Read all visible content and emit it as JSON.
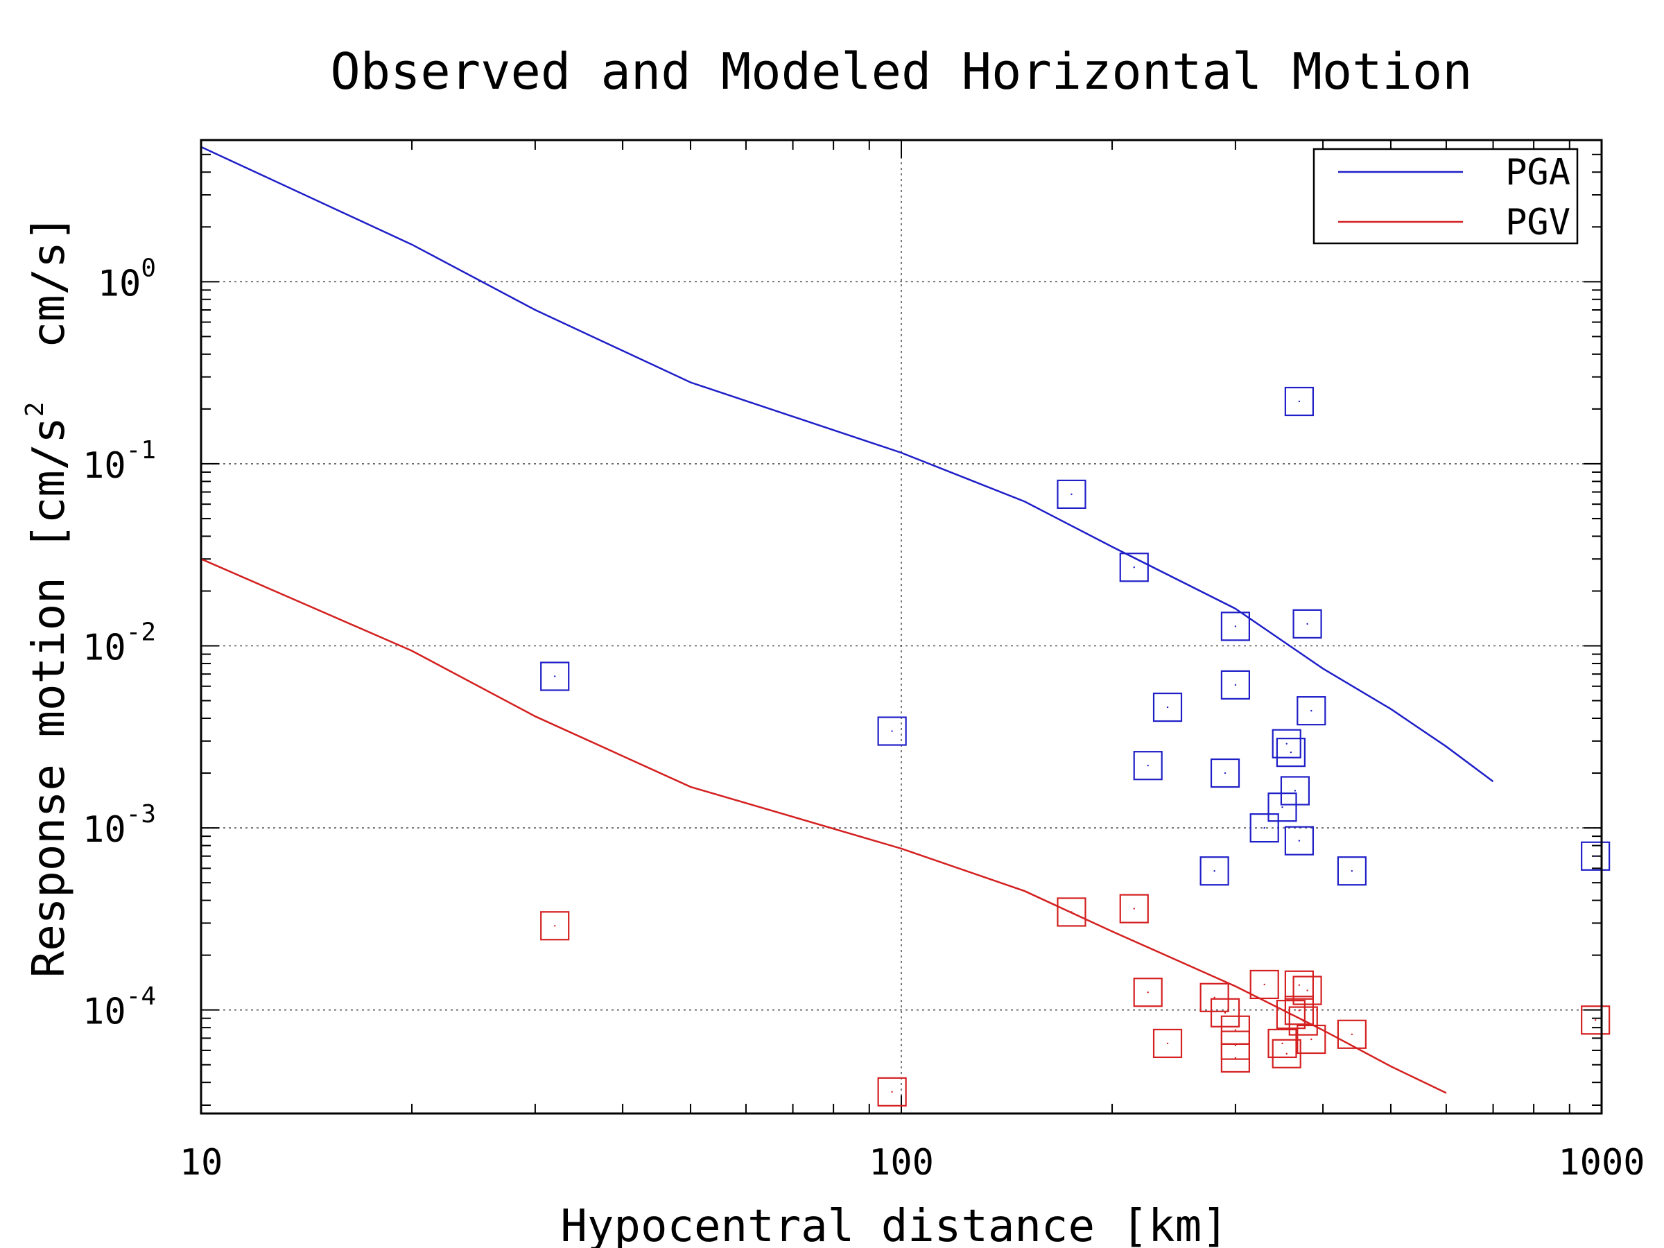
{
  "chart_data": {
    "type": "scatter",
    "title": "Observed and Modeled Horizontal Motion",
    "xlabel": "Hypocentral distance [km]",
    "ylabel_prefix": "Response motion [cm/s",
    "ylabel_sup": "2",
    "ylabel_suffix": "  cm/s]",
    "x_scale": "log",
    "y_scale": "log",
    "xlim": [
      10,
      1000
    ],
    "ylim": [
      2.7e-05,
      6
    ],
    "grid": "dotted at major ticks",
    "legend_position": "top-right",
    "x_ticks": [
      {
        "value": 10,
        "label": "10"
      },
      {
        "value": 100,
        "label": "100"
      },
      {
        "value": 1000,
        "label": "1000"
      }
    ],
    "y_ticks": [
      {
        "value": 1,
        "base": "10",
        "exp": "0"
      },
      {
        "value": 0.1,
        "base": "10",
        "exp": "-1"
      },
      {
        "value": 0.01,
        "base": "10",
        "exp": "-2"
      },
      {
        "value": 0.001,
        "base": "10",
        "exp": "-3"
      },
      {
        "value": 0.0001,
        "base": "10",
        "exp": "-4"
      }
    ],
    "series": [
      {
        "name": "PGA",
        "color": "#1f1fc8",
        "model_line": [
          [
            10,
            5.5
          ],
          [
            20,
            1.6
          ],
          [
            30,
            0.7
          ],
          [
            50,
            0.28
          ],
          [
            100,
            0.115
          ],
          [
            150,
            0.062
          ],
          [
            200,
            0.035
          ],
          [
            300,
            0.016
          ],
          [
            400,
            0.0075
          ],
          [
            500,
            0.0045
          ],
          [
            600,
            0.0028
          ],
          [
            700,
            0.0018
          ]
        ],
        "observed": [
          [
            32,
            0.0068
          ],
          [
            97,
            0.0034
          ],
          [
            175,
            0.068
          ],
          [
            215,
            0.027
          ],
          [
            225,
            0.0022
          ],
          [
            240,
            0.0046
          ],
          [
            280,
            0.00058
          ],
          [
            290,
            0.002
          ],
          [
            300,
            0.0061
          ],
          [
            300,
            0.0128
          ],
          [
            330,
            0.001
          ],
          [
            350,
            0.0013
          ],
          [
            355,
            0.0029
          ],
          [
            360,
            0.0026
          ],
          [
            365,
            0.0016
          ],
          [
            370,
            0.00085
          ],
          [
            370,
            0.22
          ],
          [
            380,
            0.0132
          ],
          [
            385,
            0.0044
          ],
          [
            440,
            0.00058
          ],
          [
            980,
            0.0007
          ]
        ]
      },
      {
        "name": "PGV",
        "color": "#d42020",
        "model_line": [
          [
            10,
            0.03
          ],
          [
            20,
            0.0094
          ],
          [
            30,
            0.0041
          ],
          [
            50,
            0.00168
          ],
          [
            100,
            0.00077
          ],
          [
            150,
            0.00045
          ],
          [
            200,
            0.00027
          ],
          [
            300,
            0.000135
          ],
          [
            400,
            7.75e-05
          ],
          [
            500,
            4.9e-05
          ],
          [
            600,
            3.5e-05
          ]
        ],
        "observed": [
          [
            32,
            0.00029
          ],
          [
            97,
            3.55e-05
          ],
          [
            175,
            0.000345
          ],
          [
            215,
            0.00036
          ],
          [
            225,
            0.000125
          ],
          [
            240,
            6.55e-05
          ],
          [
            280,
            0.000117
          ],
          [
            290,
            9.65e-05
          ],
          [
            300,
            7.75e-05
          ],
          [
            300,
            6.4e-05
          ],
          [
            300,
            5.45e-05
          ],
          [
            330,
            0.000138
          ],
          [
            350,
            6.55e-05
          ],
          [
            355,
            5.75e-05
          ],
          [
            360,
            9.45e-05
          ],
          [
            370,
            9.95e-05
          ],
          [
            370,
            0.000137
          ],
          [
            375,
            8.7e-05
          ],
          [
            380,
            0.000128
          ],
          [
            385,
            6.9e-05
          ],
          [
            440,
            7.35e-05
          ],
          [
            980,
            8.8e-05
          ]
        ]
      }
    ],
    "legend": [
      {
        "label": "PGA",
        "color": "#1f1fc8"
      },
      {
        "label": "PGV",
        "color": "#d42020"
      }
    ]
  }
}
